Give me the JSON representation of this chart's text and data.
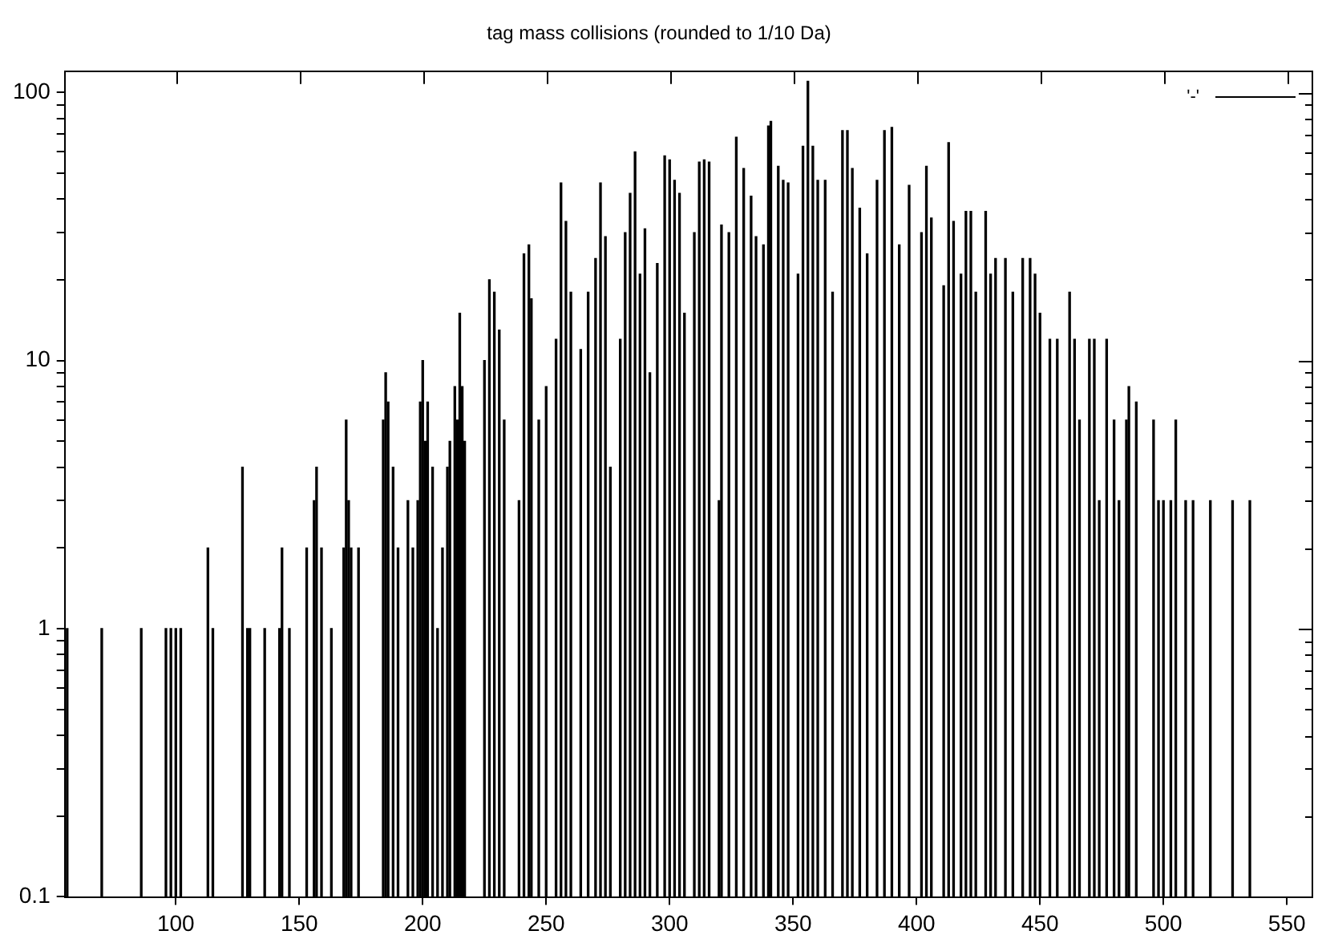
{
  "chart_data": {
    "type": "bar",
    "title": "tag mass collisions (rounded to 1/10 Da)",
    "legend": "top right",
    "grid": false,
    "log": "y",
    "xlim": [
      55,
      560
    ],
    "xticks": [
      100,
      150,
      200,
      250,
      300,
      350,
      400,
      450,
      500,
      550
    ],
    "ylim": [
      0.1,
      120
    ],
    "yticks": [
      0.1,
      {
        "value": 0.2,
        "label": null
      },
      {
        "value": 0.3,
        "label": null
      },
      {
        "value": 0.4,
        "label": null
      },
      {
        "value": 0.5,
        "label": null
      },
      {
        "value": 0.6,
        "label": null
      },
      {
        "value": 0.7,
        "label": null
      },
      {
        "value": 0.8,
        "label": null
      },
      {
        "value": 0.9,
        "label": null
      },
      1,
      {
        "value": 2,
        "label": null
      },
      {
        "value": 3,
        "label": null
      },
      {
        "value": 4,
        "label": null
      },
      {
        "value": 5,
        "label": null
      },
      {
        "value": 6,
        "label": null
      },
      {
        "value": 7,
        "label": null
      },
      {
        "value": 8,
        "label": null
      },
      {
        "value": 9,
        "label": null
      },
      10,
      {
        "value": 20,
        "label": null
      },
      {
        "value": 30,
        "label": null
      },
      {
        "value": 40,
        "label": null
      },
      {
        "value": 50,
        "label": null
      },
      {
        "value": 60,
        "label": null
      },
      {
        "value": 70,
        "label": null
      },
      {
        "value": 80,
        "label": null
      },
      {
        "value": 90,
        "label": null
      },
      100
    ],
    "series": [
      {
        "name": "'-'",
        "color": "#000000",
        "x": [
          56,
          70,
          86,
          96,
          98,
          100,
          102,
          113,
          115,
          127,
          129,
          130,
          136,
          142,
          143,
          146,
          153,
          156,
          157,
          159,
          163,
          168,
          169,
          170,
          171,
          174,
          184,
          185,
          186,
          188,
          190,
          194,
          196,
          198,
          199,
          200,
          201,
          202,
          204,
          206,
          208,
          210,
          211,
          213,
          214,
          215,
          216,
          217,
          225,
          227,
          229,
          231,
          233,
          239,
          241,
          243,
          244,
          247,
          250,
          254,
          256,
          258,
          260,
          264,
          267,
          270,
          272,
          274,
          276,
          280,
          282,
          284,
          286,
          288,
          290,
          292,
          295,
          298,
          300,
          302,
          304,
          306,
          310,
          312,
          314,
          316,
          320,
          321,
          324,
          327,
          330,
          333,
          335,
          338,
          340,
          341,
          344,
          346,
          348,
          352,
          354,
          356,
          358,
          360,
          363,
          366,
          370,
          372,
          374,
          377,
          380,
          384,
          387,
          390,
          393,
          397,
          402,
          404,
          406,
          411,
          413,
          415,
          418,
          420,
          422,
          424,
          428,
          430,
          432,
          436,
          439,
          443,
          446,
          448,
          450,
          454,
          457,
          462,
          464,
          466,
          470,
          472,
          474,
          477,
          480,
          482,
          485,
          486,
          489,
          496,
          498,
          500,
          503,
          505,
          509,
          512,
          519,
          528,
          535
        ],
        "values": [
          1,
          1,
          1,
          1,
          1,
          1,
          1,
          2,
          1,
          4,
          1,
          1,
          1,
          1,
          2,
          1,
          2,
          3,
          4,
          2,
          1,
          2,
          6,
          3,
          2,
          2,
          6,
          9,
          7,
          4,
          2,
          3,
          2,
          3,
          7,
          10,
          5,
          7,
          4,
          1,
          2,
          4,
          5,
          8,
          6,
          15,
          8,
          5,
          10,
          20,
          18,
          13,
          6,
          3,
          25,
          27,
          17,
          6,
          8,
          12,
          46,
          33,
          18,
          11,
          18,
          24,
          46,
          29,
          4,
          12,
          30,
          42,
          60,
          21,
          31,
          9,
          23,
          58,
          56,
          47,
          42,
          15,
          30,
          55,
          56,
          55,
          3,
          32,
          30,
          68,
          52,
          41,
          29,
          27,
          75,
          78,
          53,
          47,
          46,
          21,
          63,
          110,
          63,
          47,
          47,
          18,
          72,
          72,
          52,
          37,
          25,
          47,
          72,
          74,
          27,
          45,
          30,
          53,
          34,
          19,
          65,
          33,
          21,
          36,
          36,
          18,
          36,
          21,
          24,
          24,
          18,
          24,
          24,
          21,
          15,
          12,
          12,
          18,
          12,
          6,
          12,
          12,
          3,
          12,
          6,
          3,
          6,
          8,
          7,
          6,
          3,
          3,
          3,
          6,
          3,
          3,
          3,
          3,
          3
        ]
      }
    ]
  }
}
